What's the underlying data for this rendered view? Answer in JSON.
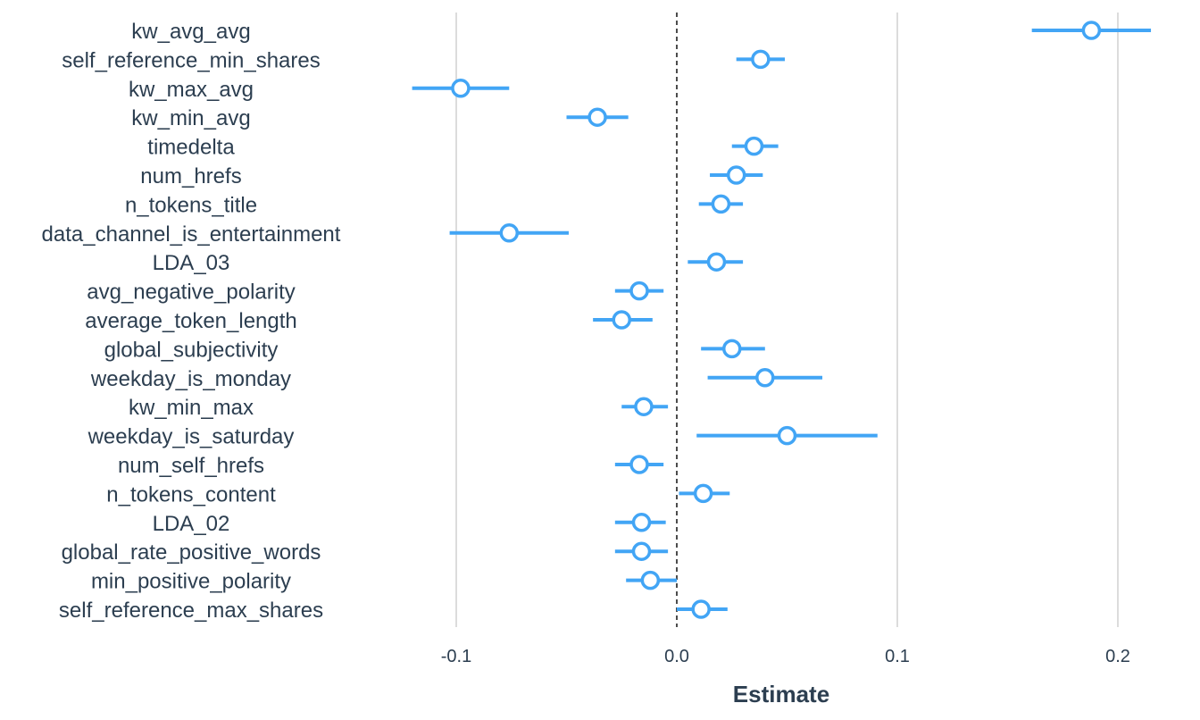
{
  "chart_data": {
    "type": "coefficient-plot",
    "xlabel": "Estimate",
    "xlim": [
      -0.17,
      0.215
    ],
    "xticks": [
      -0.1,
      0.0,
      0.1,
      0.2
    ],
    "xtick_labels": [
      "-0.1",
      "0.0",
      "0.1",
      "0.2"
    ],
    "reference_line": 0,
    "grid": "vertical",
    "color": "#42a5f5",
    "terms": [
      {
        "name": "kw_avg_avg",
        "estimate": 0.188,
        "low": 0.161,
        "high": 0.215
      },
      {
        "name": "self_reference_min_shares",
        "estimate": 0.038,
        "low": 0.027,
        "high": 0.049
      },
      {
        "name": "kw_max_avg",
        "estimate": -0.098,
        "low": -0.12,
        "high": -0.076
      },
      {
        "name": "kw_min_avg",
        "estimate": -0.036,
        "low": -0.05,
        "high": -0.022
      },
      {
        "name": "timedelta",
        "estimate": 0.035,
        "low": 0.025,
        "high": 0.046
      },
      {
        "name": "num_hrefs",
        "estimate": 0.027,
        "low": 0.015,
        "high": 0.039
      },
      {
        "name": "n_tokens_title",
        "estimate": 0.02,
        "low": 0.01,
        "high": 0.03
      },
      {
        "name": "data_channel_is_entertainment",
        "estimate": -0.076,
        "low": -0.103,
        "high": -0.049
      },
      {
        "name": "LDA_03",
        "estimate": 0.018,
        "low": 0.005,
        "high": 0.03
      },
      {
        "name": "avg_negative_polarity",
        "estimate": -0.017,
        "low": -0.028,
        "high": -0.006
      },
      {
        "name": "average_token_length",
        "estimate": -0.025,
        "low": -0.038,
        "high": -0.011
      },
      {
        "name": "global_subjectivity",
        "estimate": 0.025,
        "low": 0.011,
        "high": 0.04
      },
      {
        "name": "weekday_is_monday",
        "estimate": 0.04,
        "low": 0.014,
        "high": 0.066
      },
      {
        "name": "kw_min_max",
        "estimate": -0.015,
        "low": -0.025,
        "high": -0.004
      },
      {
        "name": "weekday_is_saturday",
        "estimate": 0.05,
        "low": 0.009,
        "high": 0.091
      },
      {
        "name": "num_self_hrefs",
        "estimate": -0.017,
        "low": -0.028,
        "high": -0.006
      },
      {
        "name": "n_tokens_content",
        "estimate": 0.012,
        "low": 0.001,
        "high": 0.024
      },
      {
        "name": "LDA_02",
        "estimate": -0.016,
        "low": -0.028,
        "high": -0.005
      },
      {
        "name": "global_rate_positive_words",
        "estimate": -0.016,
        "low": -0.028,
        "high": -0.004
      },
      {
        "name": "min_positive_polarity",
        "estimate": -0.012,
        "low": -0.023,
        "high": 0.0
      },
      {
        "name": "self_reference_max_shares",
        "estimate": 0.011,
        "low": 0.0,
        "high": 0.023
      }
    ]
  }
}
